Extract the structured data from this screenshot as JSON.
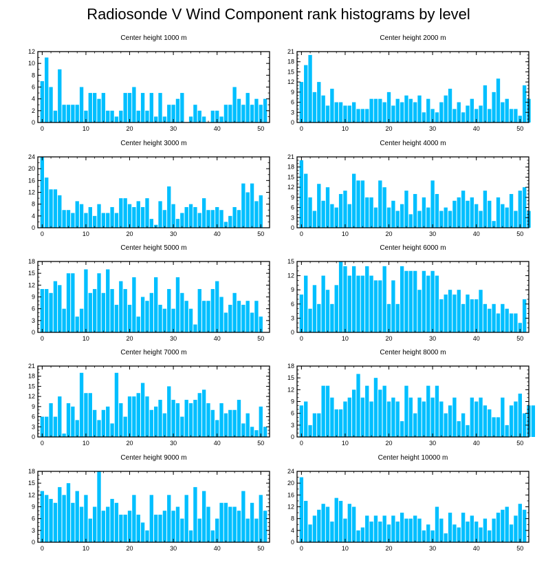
{
  "title": "Radiosonde V Wind Component rank histograms by level",
  "colors": {
    "bar": "#00BFFF",
    "bar_stroke": "#ffffff",
    "axis": "#000000"
  },
  "chart_data": [
    {
      "type": "bar",
      "title": "Center height 1000 m",
      "ylim": [
        0,
        12
      ],
      "yticks": [
        0,
        2,
        4,
        6,
        8,
        10,
        12
      ],
      "xlim": [
        -1,
        52
      ],
      "xticks": [
        0,
        10,
        20,
        30,
        40,
        50
      ],
      "values": [
        7,
        11,
        6,
        2,
        9,
        3,
        3,
        3,
        3,
        6,
        2,
        5,
        5,
        4,
        5,
        2,
        2,
        1,
        2,
        5,
        5,
        6,
        2,
        5,
        2,
        5,
        1,
        5,
        1,
        3,
        3,
        4,
        5,
        0,
        1,
        3,
        2,
        1,
        0,
        2,
        2,
        1,
        3,
        3,
        6,
        4,
        3,
        5,
        3,
        4,
        3,
        4
      ]
    },
    {
      "type": "bar",
      "title": "Center height 2000 m",
      "ylim": [
        0,
        21
      ],
      "yticks": [
        0,
        3,
        6,
        9,
        12,
        15,
        18,
        21
      ],
      "xlim": [
        -1,
        52
      ],
      "xticks": [
        0,
        10,
        20,
        30,
        40,
        50
      ],
      "values": [
        12,
        17,
        20,
        9,
        12,
        8,
        5,
        10,
        6,
        6,
        5,
        5,
        6,
        4,
        4,
        4,
        7,
        7,
        7,
        6,
        9,
        5,
        7,
        6,
        8,
        7,
        6,
        8,
        3,
        7,
        4,
        3,
        6,
        8,
        10,
        4,
        6,
        3,
        5,
        7,
        4,
        5,
        11,
        4,
        9,
        13,
        6,
        7,
        4,
        4,
        2,
        11,
        7
      ]
    },
    {
      "type": "bar",
      "title": "Center height 3000 m",
      "ylim": [
        0,
        24
      ],
      "yticks": [
        0,
        4,
        8,
        12,
        16,
        20,
        24
      ],
      "xlim": [
        -1,
        52
      ],
      "xticks": [
        0,
        10,
        20,
        30,
        40,
        50
      ],
      "values": [
        24,
        17,
        13,
        13,
        11,
        6,
        6,
        5,
        9,
        8,
        5,
        7,
        4,
        8,
        5,
        5,
        7,
        5,
        10,
        10,
        8,
        7,
        9,
        7,
        10,
        3,
        1,
        9,
        6,
        14,
        8,
        3,
        5,
        7,
        8,
        7,
        5,
        10,
        6,
        6,
        7,
        6,
        2,
        4,
        7,
        6,
        15,
        12,
        15,
        9,
        11
      ]
    },
    {
      "type": "bar",
      "title": "Center height 4000 m",
      "ylim": [
        0,
        21
      ],
      "yticks": [
        0,
        3,
        6,
        9,
        12,
        15,
        18,
        21
      ],
      "xlim": [
        -1,
        52
      ],
      "xticks": [
        0,
        10,
        20,
        30,
        40,
        50
      ],
      "values": [
        20,
        16,
        9,
        5,
        13,
        8,
        12,
        7,
        6,
        10,
        11,
        7,
        16,
        14,
        14,
        9,
        9,
        6,
        14,
        12,
        6,
        8,
        5,
        7,
        11,
        4,
        10,
        5,
        9,
        6,
        14,
        10,
        5,
        6,
        5,
        8,
        9,
        11,
        8,
        9,
        7,
        5,
        11,
        8,
        2,
        9,
        7,
        6,
        10,
        5,
        11,
        12,
        5
      ]
    },
    {
      "type": "bar",
      "title": "Center height 5000 m",
      "ylim": [
        0,
        18
      ],
      "yticks": [
        0,
        3,
        6,
        9,
        12,
        15,
        18
      ],
      "xlim": [
        -1,
        52
      ],
      "xticks": [
        0,
        10,
        20,
        30,
        40,
        50
      ],
      "values": [
        11,
        11,
        10,
        13,
        12,
        6,
        15,
        15,
        4,
        6,
        16,
        10,
        11,
        15,
        10,
        16,
        11,
        7,
        13,
        11,
        7,
        14,
        4,
        9,
        8,
        10,
        14,
        7,
        6,
        11,
        6,
        14,
        10,
        8,
        6,
        2,
        11,
        8,
        8,
        11,
        13,
        9,
        5,
        7,
        10,
        8,
        7,
        8,
        5,
        8,
        4
      ]
    },
    {
      "type": "bar",
      "title": "Center height 6000 m",
      "ylim": [
        0,
        15
      ],
      "yticks": [
        0,
        3,
        6,
        9,
        12,
        15
      ],
      "xlim": [
        -1,
        52
      ],
      "xticks": [
        0,
        10,
        20,
        30,
        40,
        50
      ],
      "values": [
        8,
        12,
        5,
        10,
        6,
        12,
        9,
        6,
        10,
        15,
        14,
        12,
        14,
        12,
        12,
        14,
        12,
        11,
        11,
        14,
        6,
        11,
        6,
        14,
        13,
        13,
        13,
        9,
        13,
        12,
        13,
        12,
        7,
        8,
        9,
        8,
        9,
        6,
        8,
        7,
        7,
        9,
        6,
        5,
        6,
        4,
        6,
        5,
        4,
        4,
        2,
        7
      ]
    },
    {
      "type": "bar",
      "title": "Center height 7000 m",
      "ylim": [
        0,
        21
      ],
      "yticks": [
        0,
        3,
        6,
        9,
        12,
        15,
        18,
        21
      ],
      "xlim": [
        -1,
        52
      ],
      "xticks": [
        0,
        10,
        20,
        30,
        40,
        50
      ],
      "values": [
        6,
        6,
        10,
        6,
        12,
        1,
        10,
        9,
        5,
        19,
        13,
        13,
        8,
        5,
        8,
        9,
        4,
        19,
        10,
        6,
        12,
        12,
        13,
        16,
        12,
        8,
        9,
        11,
        7,
        15,
        11,
        10,
        6,
        11,
        10,
        11,
        13,
        14,
        10,
        8,
        5,
        10,
        7,
        8,
        8,
        11,
        4,
        7,
        3,
        2,
        9,
        3
      ]
    },
    {
      "type": "bar",
      "title": "Center height 8000 m",
      "ylim": [
        0,
        18
      ],
      "yticks": [
        0,
        3,
        6,
        9,
        12,
        15,
        18
      ],
      "xlim": [
        -1,
        52
      ],
      "xticks": [
        0,
        10,
        20,
        30,
        40,
        50
      ],
      "values": [
        8,
        9,
        3,
        6,
        6,
        13,
        13,
        10,
        7,
        7,
        9,
        10,
        12,
        16,
        10,
        13,
        9,
        15,
        12,
        13,
        9,
        10,
        9,
        4,
        13,
        10,
        6,
        10,
        9,
        13,
        10,
        13,
        9,
        6,
        8,
        10,
        4,
        6,
        3,
        10,
        9,
        10,
        8,
        7,
        5,
        5,
        10,
        3,
        8,
        9,
        11,
        6,
        8,
        8
      ]
    },
    {
      "type": "bar",
      "title": "Center height 9000 m",
      "ylim": [
        0,
        18
      ],
      "yticks": [
        0,
        3,
        6,
        9,
        12,
        15,
        18
      ],
      "xlim": [
        -1,
        52
      ],
      "xticks": [
        0,
        10,
        20,
        30,
        40,
        50
      ],
      "values": [
        13,
        12,
        11,
        10,
        14,
        12,
        15,
        10,
        13,
        9,
        12,
        6,
        9,
        18,
        8,
        9,
        11,
        10,
        7,
        7,
        8,
        12,
        7,
        5,
        3,
        12,
        7,
        7,
        8,
        12,
        8,
        9,
        6,
        12,
        3,
        14,
        6,
        13,
        9,
        3,
        6,
        10,
        10,
        9,
        9,
        8,
        13,
        6,
        10,
        6,
        12,
        8
      ]
    },
    {
      "type": "bar",
      "title": "Center height 10000 m",
      "ylim": [
        0,
        24
      ],
      "yticks": [
        0,
        4,
        8,
        12,
        16,
        20,
        24
      ],
      "xlim": [
        -1,
        52
      ],
      "xticks": [
        0,
        10,
        20,
        30,
        40,
        50
      ],
      "values": [
        22,
        14,
        6,
        9,
        11,
        13,
        12,
        7,
        15,
        14,
        8,
        13,
        12,
        4,
        5,
        9,
        7,
        9,
        7,
        9,
        6,
        9,
        7,
        10,
        8,
        8,
        9,
        8,
        4,
        6,
        4,
        12,
        8,
        3,
        10,
        6,
        5,
        10,
        7,
        9,
        7,
        5,
        8,
        4,
        8,
        10,
        11,
        12,
        6,
        9,
        13,
        11
      ]
    }
  ]
}
